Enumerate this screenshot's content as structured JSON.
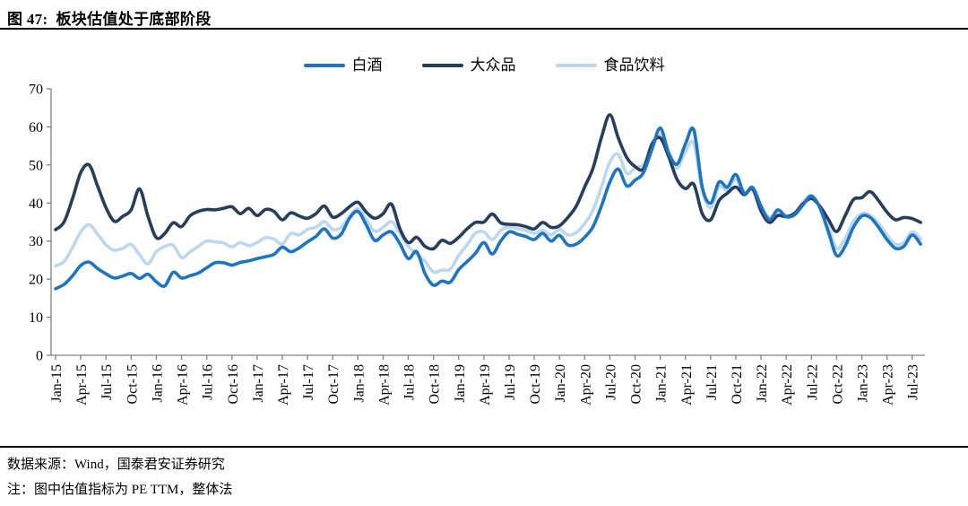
{
  "header": {
    "title": "图 47:  板块估值处于底部阶段"
  },
  "footer": {
    "source": "数据来源：Wind，国泰君安证券研究",
    "note": "注：图中估值指标为 PE TTM，整体法"
  },
  "chart_data": {
    "type": "line",
    "title": "图 47: 板块估值处于底部阶段",
    "xlabel": "",
    "ylabel": "",
    "ylim": [
      0,
      70
    ],
    "y_ticks": [
      0,
      10,
      20,
      30,
      40,
      50,
      60,
      70
    ],
    "grid": false,
    "legend_position": "top-center",
    "x_unit": "month",
    "x_start": "Jan-15",
    "x_end": "Aug-23",
    "x_tick_labels": [
      "Jan-15",
      "Apr-15",
      "Jul-15",
      "Oct-15",
      "Jan-16",
      "Apr-16",
      "Jul-16",
      "Oct-16",
      "Jan-17",
      "Apr-17",
      "Jul-17",
      "Oct-17",
      "Jan-18",
      "Apr-18",
      "Jul-18",
      "Oct-18",
      "Jan-19",
      "Apr-19",
      "Jul-19",
      "Oct-19",
      "Jan-20",
      "Apr-20",
      "Jul-20",
      "Oct-20",
      "Jan-21",
      "Apr-21",
      "Jul-21",
      "Oct-21",
      "Jan-22",
      "Apr-22",
      "Jul-22",
      "Oct-22",
      "Jan-23",
      "Apr-23",
      "Jul-23"
    ],
    "axis_color": "#808080",
    "series": [
      {
        "name": "白酒",
        "color": "#1E74C4",
        "values": [
          17.5,
          18.6,
          20.8,
          23.6,
          24.5,
          22.8,
          21.4,
          20.3,
          20.8,
          21.5,
          20.2,
          21.3,
          19.3,
          18.2,
          21.8,
          20.3,
          20.9,
          21.6,
          23.0,
          24.3,
          24.3,
          23.7,
          24.4,
          24.8,
          25.4,
          25.9,
          26.5,
          28.4,
          27.2,
          28.2,
          29.8,
          31.2,
          33.2,
          30.8,
          31.8,
          36.0,
          37.8,
          34.2,
          30.2,
          31.6,
          32.4,
          29.3,
          25.4,
          27.2,
          21.4,
          18.4,
          19.5,
          19.2,
          22.5,
          24.6,
          26.8,
          29.6,
          26.6,
          30.0,
          32.4,
          31.8,
          31.2,
          30.4,
          32.0,
          30.0,
          31.5,
          29.0,
          29.2,
          31.0,
          33.8,
          39.2,
          45.5,
          48.9,
          44.5,
          46.0,
          48.0,
          54.0,
          59.7,
          53.2,
          50.2,
          55.5,
          59.2,
          44.2,
          40.0,
          45.5,
          44.2,
          47.5,
          42.6,
          44.1,
          39.2,
          35.6,
          38.2,
          36.4,
          36.9,
          39.5,
          41.8,
          38.8,
          32.6,
          26.2,
          28.6,
          33.6,
          36.6,
          36.2,
          33.6,
          30.4,
          28.1,
          28.6,
          31.6,
          29.2
        ]
      },
      {
        "name": "大众品",
        "color": "#263E5C",
        "values": [
          33.0,
          35.0,
          41.0,
          48.0,
          50.0,
          44.5,
          38.8,
          35.2,
          36.5,
          38.2,
          43.7,
          36.5,
          30.9,
          32.0,
          34.8,
          33.8,
          36.6,
          37.8,
          38.3,
          38.2,
          38.6,
          39.0,
          37.2,
          38.6,
          36.7,
          38.3,
          37.8,
          35.6,
          37.4,
          36.6,
          36.0,
          37.2,
          39.2,
          36.3,
          37.2,
          39.0,
          40.2,
          37.6,
          36.0,
          37.2,
          39.7,
          33.2,
          29.6,
          31.0,
          28.6,
          28.0,
          30.2,
          29.4,
          31.0,
          33.2,
          34.9,
          35.0,
          37.1,
          34.8,
          34.4,
          34.3,
          33.8,
          33.2,
          34.9,
          33.6,
          34.0,
          36.2,
          39.2,
          44.2,
          49.2,
          57.2,
          63.2,
          57.1,
          52.0,
          49.6,
          49.0,
          55.4,
          57.1,
          52.2,
          46.2,
          43.8,
          44.9,
          37.2,
          35.6,
          40.6,
          42.6,
          44.2,
          42.2,
          43.7,
          37.9,
          34.9,
          36.7,
          36.4,
          37.3,
          39.8,
          41.2,
          39.2,
          35.8,
          32.5,
          36.6,
          40.9,
          41.4,
          43.0,
          40.6,
          37.6,
          35.6,
          36.2,
          35.9,
          34.9
        ]
      },
      {
        "name": "食品饮料",
        "color": "#BDD7EE",
        "values": [
          23.5,
          24.6,
          28.2,
          32.4,
          34.3,
          31.8,
          29.0,
          27.6,
          28.1,
          29.1,
          26.4,
          24.0,
          27.2,
          28.6,
          28.9,
          25.7,
          27.1,
          28.6,
          30.0,
          29.8,
          29.5,
          28.5,
          29.6,
          28.8,
          29.6,
          30.9,
          30.5,
          29.2,
          32.0,
          31.6,
          33.1,
          33.6,
          35.1,
          33.1,
          33.6,
          36.5,
          38.5,
          35.6,
          32.6,
          33.6,
          35.1,
          32.0,
          28.6,
          26.6,
          24.6,
          21.9,
          22.4,
          22.6,
          26.2,
          29.0,
          32.1,
          32.4,
          30.4,
          32.8,
          33.7,
          33.3,
          32.8,
          32.1,
          32.8,
          31.6,
          33.1,
          31.6,
          32.2,
          34.6,
          38.2,
          44.2,
          50.8,
          52.8,
          47.8,
          49.2,
          50.2,
          54.5,
          57.8,
          52.6,
          49.2,
          53.5,
          55.6,
          43.2,
          38.8,
          44.2,
          43.4,
          46.2,
          42.4,
          43.6,
          38.8,
          36.2,
          37.4,
          36.6,
          37.1,
          40.2,
          42.0,
          39.0,
          33.8,
          28.1,
          30.6,
          35.2,
          37.2,
          36.8,
          34.6,
          31.6,
          29.1,
          29.6,
          32.4,
          30.6
        ]
      }
    ]
  }
}
